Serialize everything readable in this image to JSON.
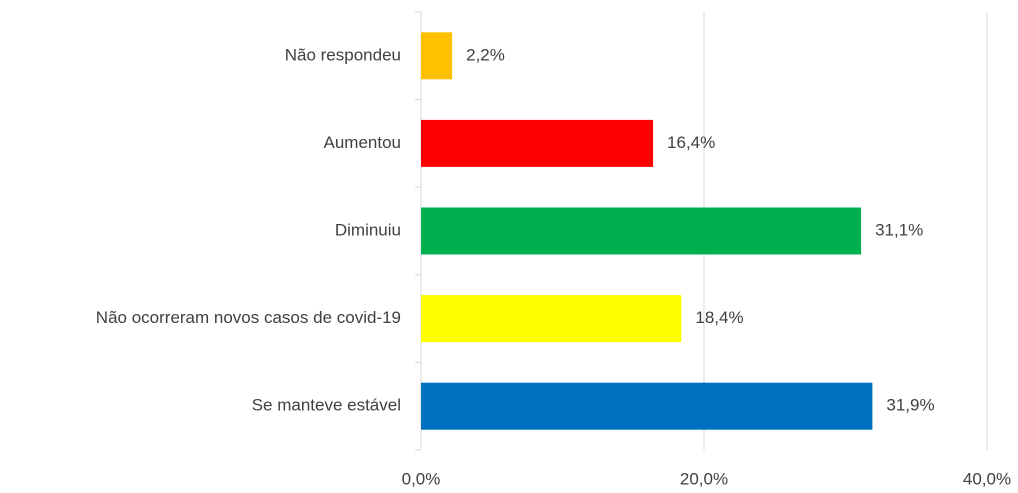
{
  "chart_data": {
    "type": "bar",
    "orientation": "horizontal",
    "categories": [
      "Não respondeu",
      "Aumentou",
      "Diminuiu",
      "Não ocorreram novos casos de covid-19",
      "Se manteve estável"
    ],
    "values": [
      2.2,
      16.4,
      31.1,
      18.4,
      31.9
    ],
    "value_labels": [
      "2,2%",
      "16,4%",
      "31,1%",
      "18,4%",
      "31,9%"
    ],
    "colors": [
      "#ffc000",
      "#ff0000",
      "#00b050",
      "#ffff00",
      "#0070c0"
    ],
    "xlim": [
      0,
      40
    ],
    "xticks": [
      {
        "value": 0,
        "label": "0,0%"
      },
      {
        "value": 20,
        "label": "20,0%"
      },
      {
        "value": 40,
        "label": "40,0%"
      }
    ],
    "grid": true
  }
}
